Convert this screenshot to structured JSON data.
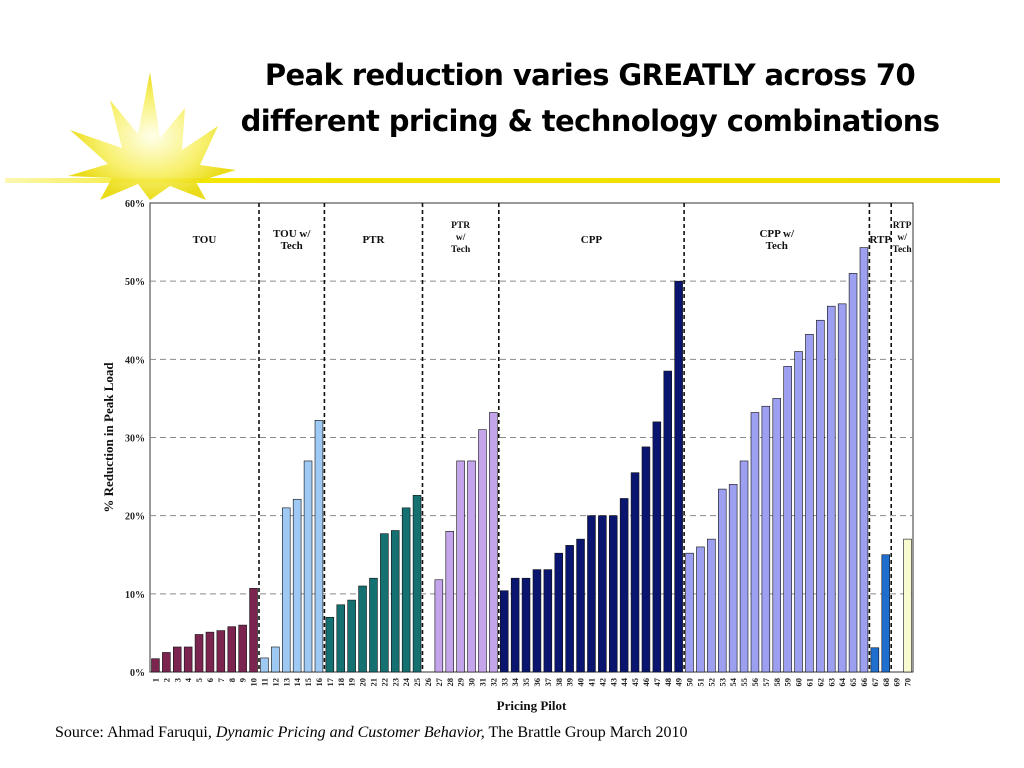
{
  "slide": {
    "title_line1": "Peak reduction varies GREATLY across 70",
    "title_line2": "different pricing & technology combinations",
    "source_prefix": "Source: Ahmad Faruqui, ",
    "source_book": "Dynamic Pricing and Customer Behavior,",
    "source_suffix": " The Brattle Group March 2010"
  },
  "chart_data": {
    "type": "bar",
    "xlabel": "Pricing Pilot",
    "ylabel": "% Reduction in Peak Load",
    "ylim": [
      0,
      60
    ],
    "yticks": [
      "0%",
      "10%",
      "20%",
      "30%",
      "40%",
      "50%",
      "60%"
    ],
    "grid": true,
    "categories": [
      "1",
      "2",
      "3",
      "4",
      "5",
      "6",
      "7",
      "8",
      "9",
      "10",
      "11",
      "12",
      "13",
      "14",
      "15",
      "16",
      "17",
      "18",
      "19",
      "20",
      "21",
      "22",
      "23",
      "24",
      "25",
      "26",
      "27",
      "28",
      "29",
      "30",
      "31",
      "32",
      "33",
      "34",
      "35",
      "36",
      "37",
      "38",
      "39",
      "40",
      "41",
      "42",
      "43",
      "44",
      "45",
      "46",
      "47",
      "48",
      "49",
      "50",
      "51",
      "52",
      "53",
      "54",
      "55",
      "56",
      "57",
      "58",
      "59",
      "60",
      "61",
      "62",
      "63",
      "64",
      "65",
      "66",
      "67",
      "68",
      "69",
      "70"
    ],
    "groups": [
      {
        "name": "TOU",
        "label_lines": [
          "TOU"
        ],
        "color": "#7b2450",
        "values": [
          1.7,
          2.5,
          3.2,
          3.2,
          4.8,
          5.1,
          5.3,
          5.8,
          6.0,
          10.7
        ]
      },
      {
        "name": "TOU w/ Tech",
        "label_lines": [
          "TOU w/",
          "Tech"
        ],
        "color": "#9ec9f2",
        "values": [
          1.8,
          3.2,
          21.0,
          22.1,
          27.0,
          32.2
        ]
      },
      {
        "name": "PTR",
        "label_lines": [
          "PTR"
        ],
        "color": "#147071",
        "values": [
          7.0,
          8.6,
          9.2,
          11.0,
          12.0,
          17.7,
          18.1,
          21.0,
          22.6
        ]
      },
      {
        "name": "PTR w/ Tech",
        "label_lines": [
          "PTR",
          "w/",
          "Tech"
        ],
        "color": "#c4a5ec",
        "values": [
          0,
          11.8,
          18.0,
          27.0,
          27.0,
          31.0,
          33.2
        ]
      },
      {
        "name": "CPP",
        "label_lines": [
          "CPP"
        ],
        "color": "#0a1570",
        "values": [
          10.4,
          12.0,
          12.0,
          13.1,
          13.1,
          15.2,
          16.2,
          17.0,
          20.0,
          20.0,
          20.0,
          22.2,
          25.5,
          28.8,
          32.0,
          38.5,
          50.0
        ]
      },
      {
        "name": "CPP w/ Tech",
        "label_lines": [
          "CPP w/",
          "Tech"
        ],
        "color": "#9d9ff0",
        "values": [
          15.2,
          16.0,
          17.0,
          23.4,
          24.0,
          27.0,
          33.2,
          34.0,
          35.0,
          39.1,
          41.0,
          43.2,
          45.0,
          46.8,
          47.1,
          51.0,
          54.3
        ]
      },
      {
        "name": "RTP",
        "label_lines": [
          "RTP"
        ],
        "color": "#1f6fcf",
        "values": [
          3.1,
          15.0
        ]
      },
      {
        "name": "RTP w/ Tech",
        "label_lines": [
          "RTP",
          "w/",
          "Tech"
        ],
        "color": "#fafad0",
        "values": [
          0,
          17.0
        ]
      }
    ]
  }
}
